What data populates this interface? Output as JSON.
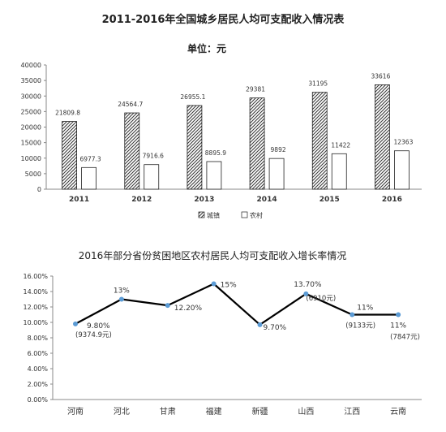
{
  "chart_data": [
    {
      "type": "bar",
      "title": "2011-2016年全国城乡居民人均可支配收入情况表",
      "subtitle": "单位：元",
      "categories": [
        "2011",
        "2012",
        "2013",
        "2014",
        "2015",
        "2016"
      ],
      "series": [
        {
          "name": "城镇",
          "values": [
            21809.8,
            24564.7,
            26955.1,
            29381,
            31195,
            33616
          ],
          "labels": [
            "21809.8",
            "24564.7",
            "26955.1",
            "29381",
            "31195",
            "33616"
          ],
          "pattern": "hatched"
        },
        {
          "name": "农村",
          "values": [
            6977.3,
            7916.6,
            8895.9,
            9892,
            11422,
            12363
          ],
          "labels": [
            "6977.3",
            "7916.6",
            "8895.9",
            "9892",
            "11422",
            "12363"
          ],
          "pattern": "white"
        }
      ],
      "ylim": [
        0,
        40000
      ],
      "yticks": [
        "0",
        "5000",
        "10000",
        "15000",
        "20000",
        "25000",
        "30000",
        "35000",
        "40000"
      ],
      "grid": false,
      "legend": "bottom"
    },
    {
      "type": "line",
      "title": "2016年部分省份贫困地区农村居民人均可支配收入增长率情况",
      "categories": [
        "河南",
        "河北",
        "甘肃",
        "福建",
        "新疆",
        "山西",
        "江西",
        "云南"
      ],
      "values": [
        9.8,
        13.0,
        12.2,
        15.0,
        9.7,
        13.7,
        11.0,
        11.0
      ],
      "value_labels": [
        "9.80%",
        "13%",
        "12.20%",
        "15%",
        "9.70%",
        "13.70%",
        "11%",
        "11%"
      ],
      "notes": [
        "(9374.9元)",
        "",
        "",
        "",
        "",
        "(6910元)",
        "(9133元)",
        "(7847元)"
      ],
      "ylim": [
        0,
        16
      ],
      "yticks": [
        "0.00%",
        "2.00%",
        "4.00%",
        "6.00%",
        "8.00%",
        "10.00%",
        "12.00%",
        "14.00%",
        "16.00%"
      ],
      "line_color": "#000000",
      "marker_color": "#5b9bd5",
      "grid": false
    }
  ]
}
